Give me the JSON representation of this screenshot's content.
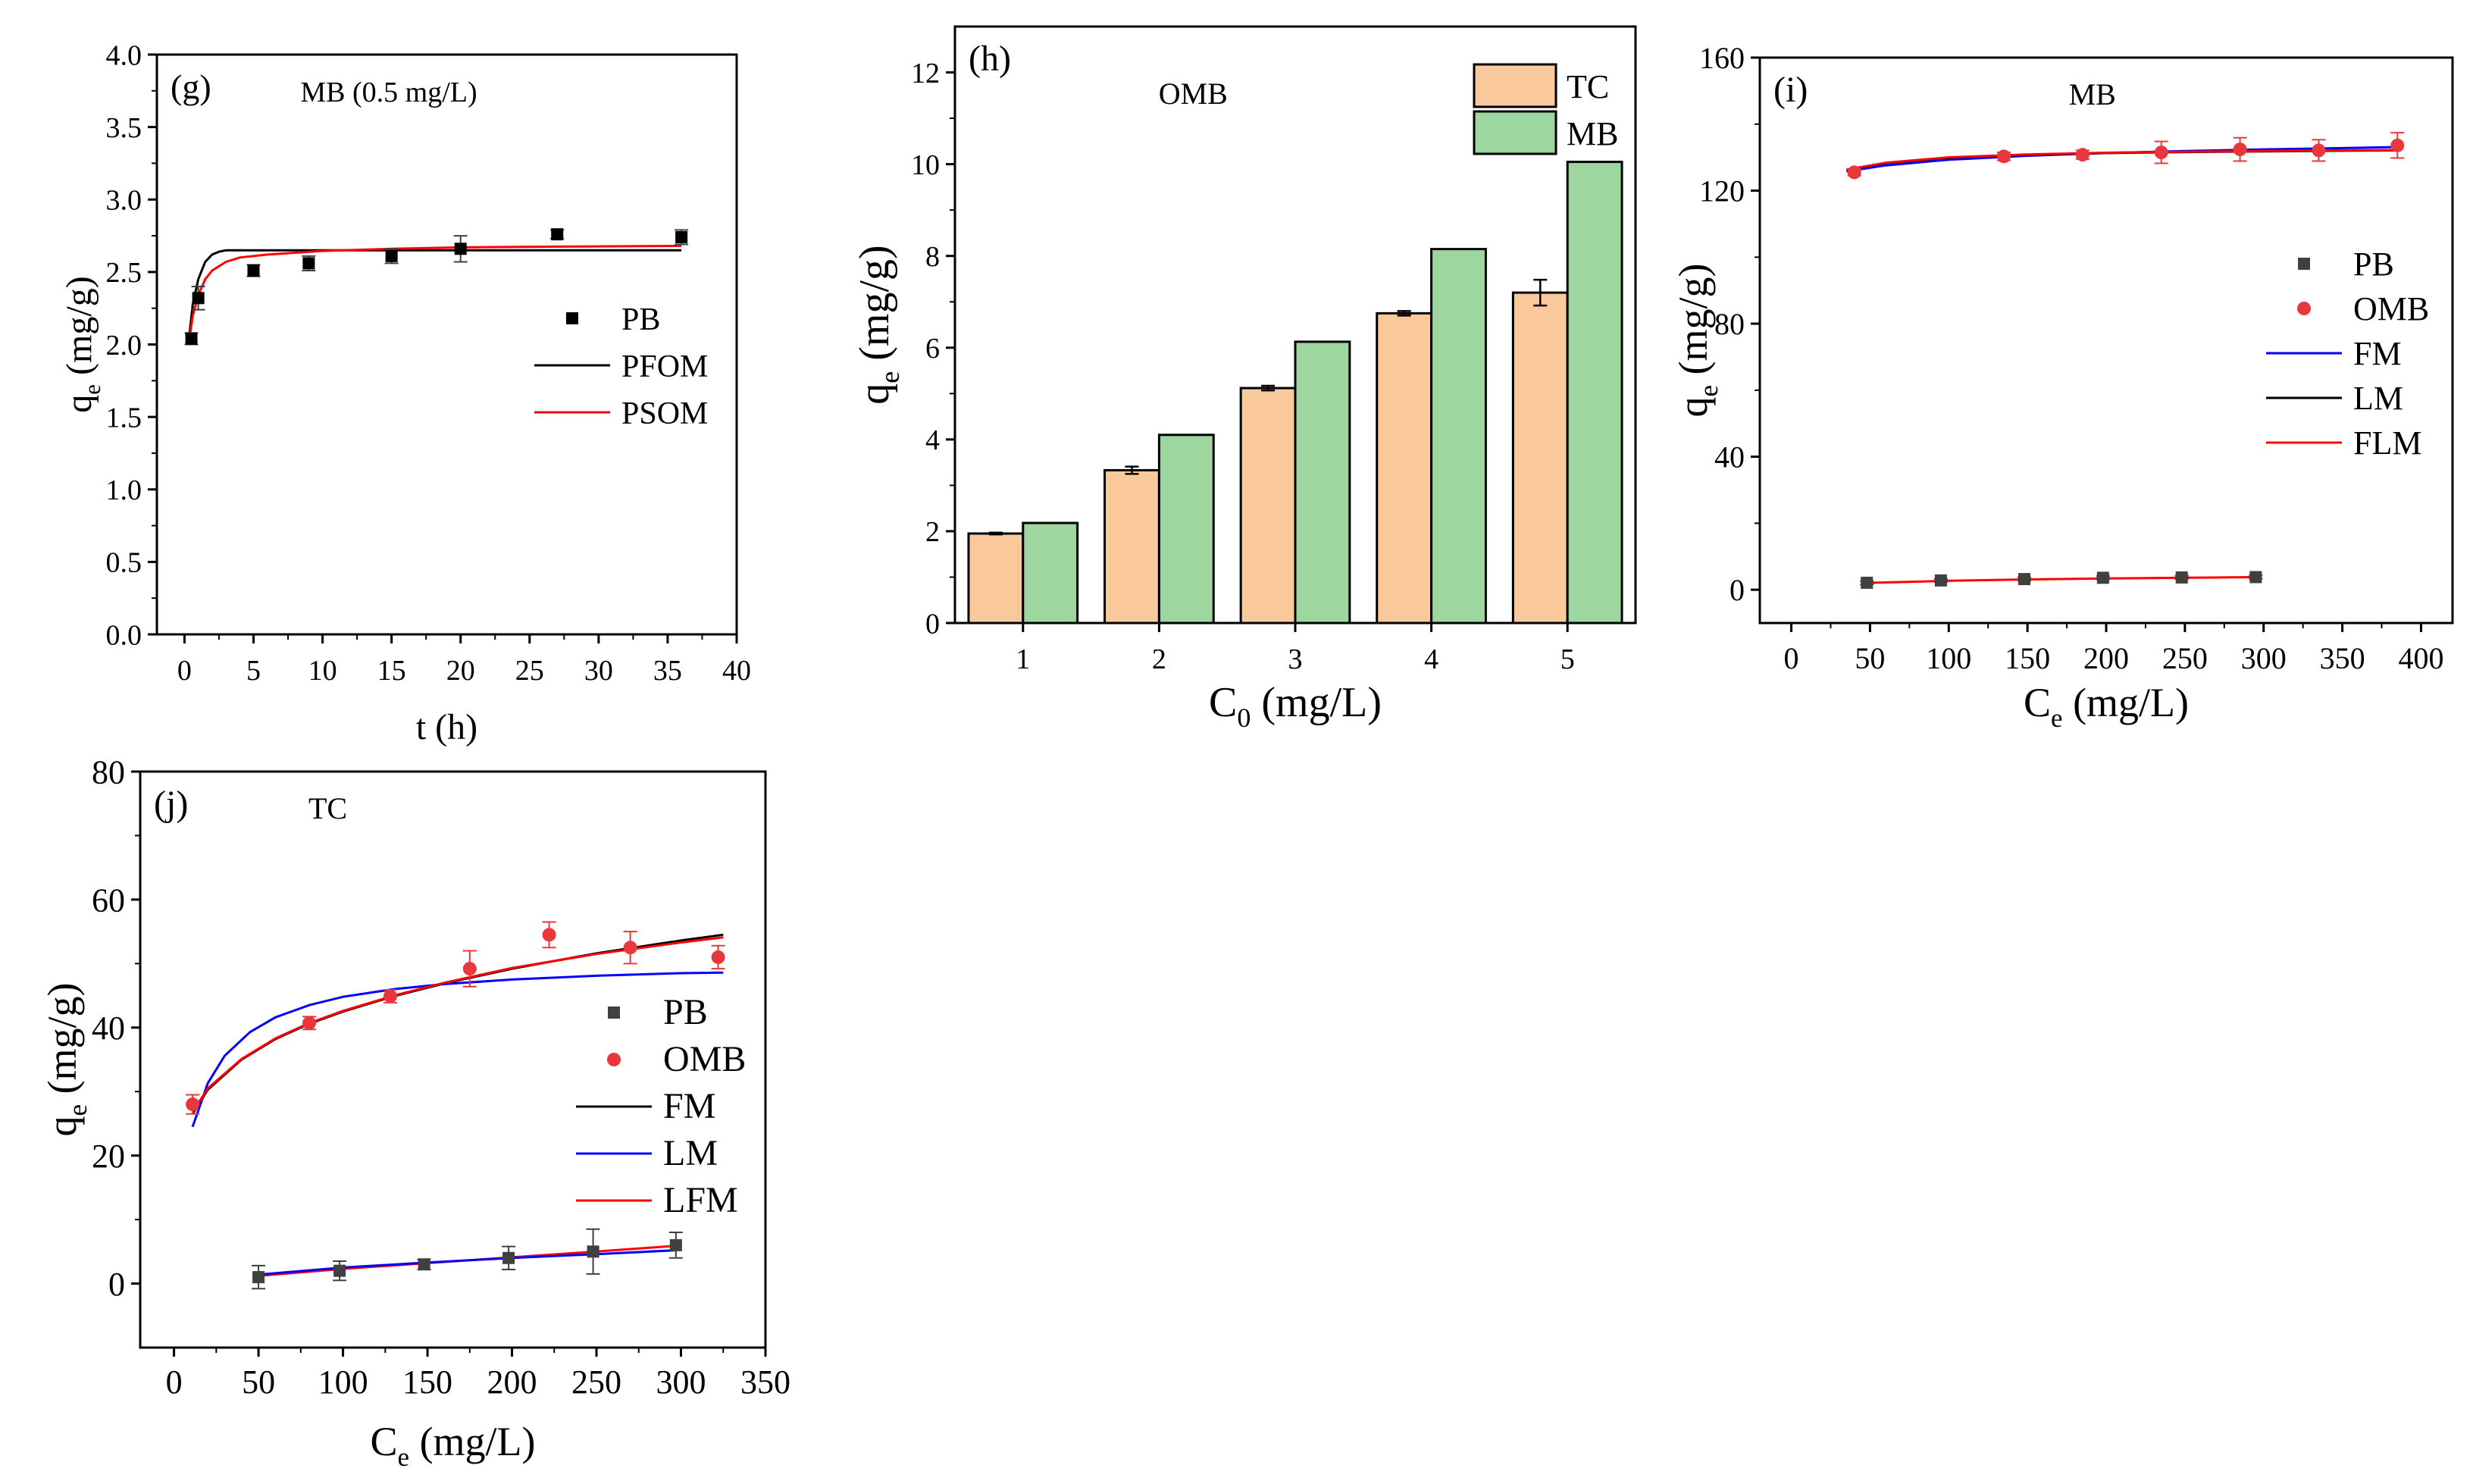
{
  "chart_data": [
    {
      "id": "g",
      "type": "scatter",
      "panel_label": "(g)",
      "title": "MB (0.5 mg/L)",
      "xlabel": "t (h)",
      "ylabel": "q",
      "ylabel_sub": "e",
      "ylabel_tail": " (mg/g)",
      "xlim": [
        -2,
        40
      ],
      "ylim": [
        0,
        4
      ],
      "xticks": [
        0,
        5,
        10,
        15,
        20,
        25,
        30,
        35,
        40
      ],
      "yticks": [
        "0.0",
        "0.5",
        "1.0",
        "1.5",
        "2.0",
        "2.5",
        "3.0",
        "3.5",
        "4.0"
      ],
      "legend_position": "right",
      "series": [
        {
          "name": "PB",
          "kind": "points",
          "marker": "square",
          "color": "#000000",
          "x": [
            0.5,
            1,
            5,
            9,
            15,
            20,
            27,
            36
          ],
          "y": [
            2.04,
            2.32,
            2.51,
            2.56,
            2.61,
            2.66,
            2.76,
            2.74
          ],
          "err": [
            0.04,
            0.08,
            0.04,
            0.05,
            0.05,
            0.09,
            0.03,
            0.05
          ]
        },
        {
          "name": "PFOM",
          "kind": "line",
          "color": "#000000",
          "x": [
            0.3,
            0.6,
            1,
            1.5,
            2,
            2.5,
            3,
            4,
            6,
            10,
            20,
            36
          ],
          "y": [
            2.02,
            2.28,
            2.45,
            2.57,
            2.62,
            2.64,
            2.65,
            2.65,
            2.65,
            2.65,
            2.65,
            2.65
          ]
        },
        {
          "name": "PSOM",
          "kind": "line",
          "color": "#ff0000",
          "x": [
            0.3,
            0.6,
            1,
            1.5,
            2,
            3,
            4,
            6,
            10,
            15,
            20,
            27,
            36
          ],
          "y": [
            2.0,
            2.2,
            2.34,
            2.45,
            2.51,
            2.57,
            2.6,
            2.62,
            2.645,
            2.66,
            2.67,
            2.675,
            2.68
          ]
        }
      ]
    },
    {
      "id": "h",
      "type": "bar",
      "panel_label": "(h)",
      "title": "OMB",
      "xlabel": "C",
      "xlabel_sub": "0",
      "xlabel_tail": " (mg/L)",
      "ylabel": "q",
      "ylabel_sub": "e",
      "ylabel_tail": " (mg/g)",
      "ylim": [
        0,
        13
      ],
      "categories": [
        "1",
        "2",
        "3",
        "4",
        "5"
      ],
      "yticks": [
        "0",
        "2",
        "4",
        "6",
        "8",
        "10",
        "12"
      ],
      "legend_position": "top-right",
      "series": [
        {
          "name": "TC",
          "color": "#f9c89b",
          "values": [
            1.95,
            3.33,
            5.12,
            6.75,
            7.2
          ],
          "err": [
            0.02,
            0.08,
            0.05,
            0.05,
            0.28
          ]
        },
        {
          "name": "MB",
          "color": "#9dd69e",
          "values": [
            2.18,
            4.1,
            6.13,
            8.15,
            10.05
          ]
        }
      ]
    },
    {
      "id": "i",
      "type": "scatter",
      "panel_label": "(i)",
      "title": "MB",
      "xlabel": "C",
      "xlabel_sub": "e",
      "xlabel_tail": " (mg/L)",
      "ylabel": "q",
      "ylabel_sub": "e",
      "ylabel_tail": " (mg/g)",
      "xlim": [
        -20,
        420
      ],
      "ylim": [
        -10,
        160
      ],
      "xticks": [
        0,
        50,
        100,
        150,
        200,
        250,
        300,
        350,
        400
      ],
      "yticks": [
        0,
        40,
        80,
        120,
        160
      ],
      "legend_position": "right",
      "series": [
        {
          "name": "PB",
          "kind": "points",
          "marker": "square",
          "color": "#404040",
          "x": [
            48,
            95,
            148,
            198,
            248,
            295
          ],
          "y": [
            2.1,
            2.8,
            3.2,
            3.6,
            3.7,
            3.8
          ],
          "err": [
            0.5,
            0.5,
            0.5,
            0.5,
            0.5,
            0.5
          ]
        },
        {
          "name": "OMB",
          "kind": "points",
          "marker": "circle",
          "color": "#e8373d",
          "x": [
            40,
            135,
            185,
            235,
            285,
            335,
            385
          ],
          "y": [
            125.5,
            130.3,
            130.8,
            131.5,
            132.4,
            132.1,
            133.6
          ],
          "err": [
            1.0,
            1.2,
            1.3,
            3.3,
            3.5,
            3.2,
            3.8
          ]
        },
        {
          "name": "FM",
          "kind": "line",
          "color": "#0000ff",
          "x": [
            35,
            60,
            100,
            150,
            200,
            250,
            300,
            350,
            385
          ],
          "y": [
            125.8,
            127.6,
            129.3,
            130.5,
            131.3,
            131.9,
            132.4,
            132.8,
            133.1
          ]
        },
        {
          "name": "LM",
          "kind": "line",
          "color": "#000000",
          "x": [
            35,
            60,
            100,
            150,
            200,
            250,
            300,
            350,
            385
          ],
          "y": [
            126.2,
            128.3,
            129.9,
            130.8,
            131.3,
            131.6,
            131.8,
            132.0,
            132.1
          ]
        },
        {
          "name": "FLM",
          "kind": "line",
          "color": "#ff0000",
          "x": [
            35,
            60,
            100,
            150,
            200,
            250,
            300,
            350,
            385
          ],
          "y": [
            126.3,
            128.4,
            130.0,
            130.9,
            131.4,
            131.7,
            131.9,
            132.1,
            132.2
          ]
        },
        {
          "name": "PB fit",
          "kind": "line",
          "legend": false,
          "color": "#ff0000",
          "x": [
            45,
            100,
            150,
            200,
            250,
            297
          ],
          "y": [
            2.0,
            2.7,
            3.1,
            3.4,
            3.6,
            3.8
          ]
        }
      ]
    },
    {
      "id": "j",
      "type": "scatter",
      "panel_label": "(j)",
      "title": "TC",
      "xlabel": "C",
      "xlabel_sub": "e",
      "xlabel_tail": " (mg/L)",
      "ylabel": "q",
      "ylabel_sub": "e",
      "ylabel_tail": " (mg/g)",
      "xlim": [
        -20,
        350
      ],
      "ylim": [
        -10,
        80
      ],
      "xticks": [
        0,
        50,
        100,
        150,
        200,
        250,
        300,
        350
      ],
      "yticks": [
        0,
        20,
        40,
        60,
        80
      ],
      "legend_position": "right",
      "series": [
        {
          "name": "PB",
          "kind": "points",
          "marker": "square",
          "color": "#404040",
          "x": [
            50,
            98,
            148,
            198,
            248,
            297
          ],
          "y": [
            1.0,
            2.0,
            3.0,
            4.0,
            5.0,
            6.0
          ],
          "err": [
            1.8,
            1.5,
            0.8,
            1.8,
            3.5,
            2.0
          ]
        },
        {
          "name": "OMB",
          "kind": "points",
          "marker": "circle",
          "color": "#e8373d",
          "x": [
            11,
            80,
            128,
            175,
            222,
            270,
            322
          ],
          "y": [
            28.0,
            40.7,
            44.9,
            49.2,
            54.5,
            52.5,
            51.0
          ],
          "err": [
            1.5,
            1.0,
            1.0,
            2.8,
            2.0,
            2.5,
            1.8
          ]
        },
        {
          "name": "FM",
          "kind": "line",
          "color": "#000000",
          "x": [
            11,
            20,
            40,
            60,
            80,
            100,
            130,
            160,
            200,
            250,
            300,
            325
          ],
          "y": [
            26.5,
            30.3,
            35.0,
            38.2,
            40.6,
            42.5,
            44.9,
            46.9,
            49.2,
            51.6,
            53.6,
            54.5
          ]
        },
        {
          "name": "LM",
          "kind": "line",
          "color": "#0000ff",
          "x": [
            11,
            20,
            30,
            45,
            60,
            80,
            100,
            130,
            160,
            200,
            250,
            300,
            325
          ],
          "y": [
            24.5,
            31.3,
            35.6,
            39.3,
            41.6,
            43.5,
            44.8,
            46.0,
            46.8,
            47.5,
            48.1,
            48.5,
            48.6
          ]
        },
        {
          "name": "LFM",
          "kind": "line",
          "color": "#ff0000",
          "x": [
            11,
            20,
            40,
            60,
            80,
            100,
            130,
            160,
            200,
            250,
            300,
            325
          ],
          "y": [
            26.8,
            30.5,
            35.1,
            38.3,
            40.7,
            42.6,
            45.0,
            47.0,
            49.3,
            51.5,
            53.3,
            54.1
          ]
        },
        {
          "name": "PB fit",
          "kind": "line",
          "legend": false,
          "color": "#ff0000",
          "x": [
            50,
            100,
            150,
            200,
            250,
            297
          ],
          "y": [
            1.2,
            2.3,
            3.2,
            4.1,
            5.0,
            5.9
          ]
        },
        {
          "name": "PB fit LM",
          "kind": "line",
          "legend": false,
          "color": "#0000ff",
          "x": [
            50,
            100,
            150,
            200,
            250,
            297
          ],
          "y": [
            1.4,
            2.5,
            3.3,
            4.0,
            4.6,
            5.2
          ]
        }
      ]
    }
  ]
}
